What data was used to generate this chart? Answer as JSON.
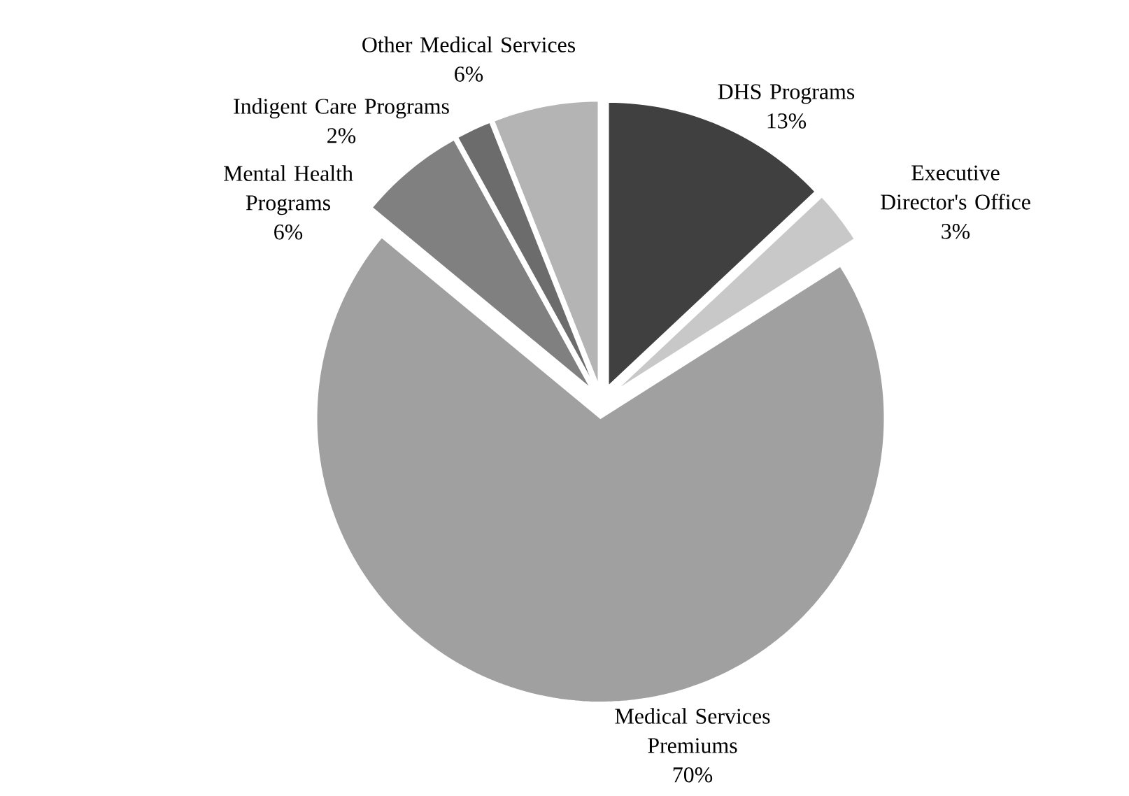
{
  "chart_data": {
    "type": "pie",
    "categories": [
      "DHS Programs",
      "Executive Director's Office",
      "Medical Services Premiums",
      "Mental Health Programs",
      "Indigent Care Programs",
      "Other Medical Services"
    ],
    "values": [
      13,
      3,
      70,
      6,
      2,
      6
    ],
    "value_labels": [
      "13%",
      "3%",
      "70%",
      "6%",
      "2%",
      "6%"
    ],
    "colors": [
      "#404040",
      "#c8c8c8",
      "#a0a0a0",
      "#808080",
      "#6c6c6c",
      "#b4b4b4"
    ]
  }
}
